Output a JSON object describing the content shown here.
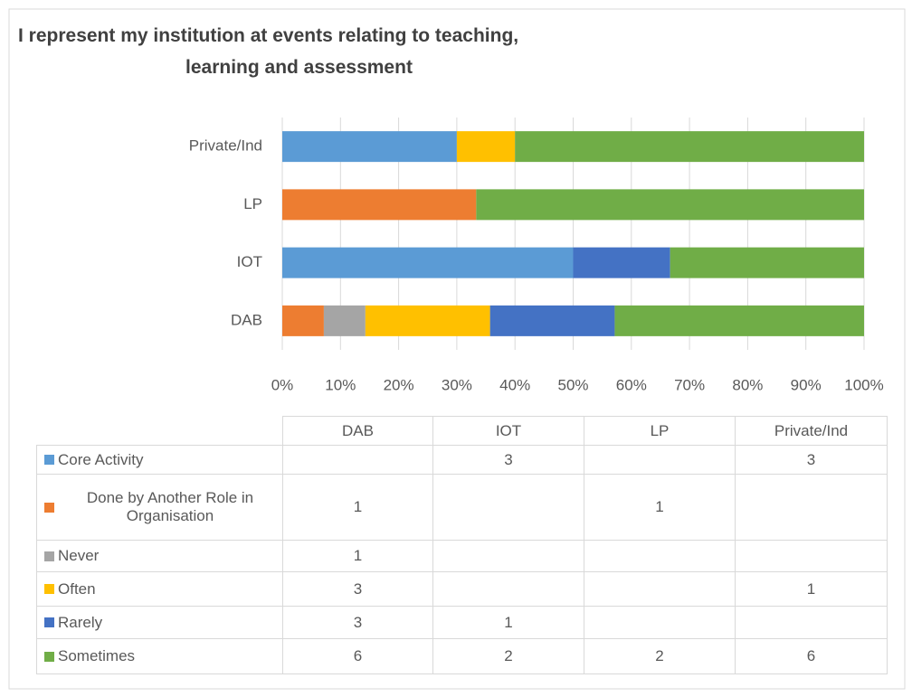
{
  "chart_data": {
    "type": "bar_stacked_percent_horizontal",
    "title": "I represent my institution at events relating to teaching, learning and assessment",
    "categories": [
      "DAB",
      "IOT",
      "LP",
      "Private/Ind"
    ],
    "series": [
      {
        "name": "Core Activity",
        "color": "#5b9bd5",
        "values": [
          null,
          3,
          null,
          3
        ]
      },
      {
        "name": "Done by Another Role in Organisation",
        "color": "#ed7d31",
        "values": [
          1,
          null,
          1,
          null
        ]
      },
      {
        "name": "Never",
        "color": "#a5a5a5",
        "values": [
          1,
          null,
          null,
          null
        ]
      },
      {
        "name": "Often",
        "color": "#ffc000",
        "values": [
          3,
          null,
          null,
          1
        ]
      },
      {
        "name": "Rarely",
        "color": "#4472c4",
        "values": [
          3,
          1,
          null,
          null
        ]
      },
      {
        "name": "Sometimes",
        "color": "#70ad47",
        "values": [
          6,
          2,
          2,
          6
        ]
      }
    ],
    "xlim": [
      0,
      100
    ],
    "xticks": [
      {
        "value": 0,
        "label": "0%"
      },
      {
        "value": 10,
        "label": "10%"
      },
      {
        "value": 20,
        "label": "20%"
      },
      {
        "value": 30,
        "label": "30%"
      },
      {
        "value": 40,
        "label": "40%"
      },
      {
        "value": 50,
        "label": "50%"
      },
      {
        "value": 60,
        "label": "60%"
      },
      {
        "value": 70,
        "label": "70%"
      },
      {
        "value": 80,
        "label": "80%"
      },
      {
        "value": 90,
        "label": "90%"
      },
      {
        "value": 100,
        "label": "100%"
      }
    ],
    "grid": true,
    "data_table": true
  }
}
